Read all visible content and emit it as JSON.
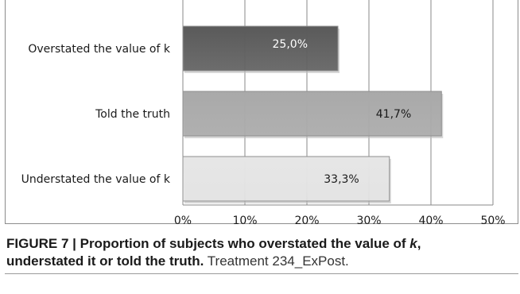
{
  "chart_data": {
    "type": "bar",
    "orientation": "horizontal",
    "categories": [
      "Overstated the value of k",
      "Told the truth",
      "Understated the value of k"
    ],
    "values": [
      25.0,
      41.7,
      33.3
    ],
    "value_labels": [
      "25,0%",
      "41,7%",
      "33,3%"
    ],
    "xlim": [
      0,
      50
    ],
    "x_ticks": [
      "0%",
      "10%",
      "20%",
      "30%",
      "40%",
      "50%"
    ],
    "grid": "vertical",
    "bar_colors": [
      "#5a5a5a",
      "#a9a9a9",
      "#e6e6e6"
    ],
    "label_colors": [
      "#ffffff",
      "#1a1a1a",
      "#1a1a1a"
    ]
  },
  "caption": {
    "bold_part_1": "FIGURE 7 | Proportion of subjects who overstated the value of ",
    "bold_italic": "k",
    "bold_part_2": ",",
    "bold_part_3": "understated it or told the truth.",
    "note": " Treatment 234_ExPost."
  }
}
